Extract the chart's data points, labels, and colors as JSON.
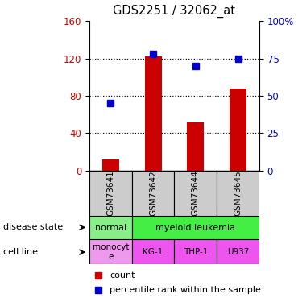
{
  "title": "GDS2251 / 32062_at",
  "samples": [
    "GSM73641",
    "GSM73642",
    "GSM73644",
    "GSM73645"
  ],
  "counts": [
    12,
    122,
    52,
    88
  ],
  "percentiles": [
    45,
    78,
    70,
    75
  ],
  "ylim_left": [
    0,
    160
  ],
  "ylim_right": [
    0,
    100
  ],
  "yticks_left": [
    0,
    40,
    80,
    120,
    160
  ],
  "yticks_right": [
    0,
    25,
    50,
    75,
    100
  ],
  "ytick_labels_right": [
    "0",
    "25",
    "50",
    "75",
    "100%"
  ],
  "bar_color": "#cc0000",
  "dot_color": "#0000cc",
  "cell_lines": [
    "monocyt\ne",
    "KG-1",
    "THP-1",
    "U937"
  ],
  "disease_color_normal": "#88ee88",
  "disease_color_leukemia": "#44ee44",
  "cell_color_mono": "#ee99ee",
  "cell_color_other": "#ee55ee",
  "gray_color": "#cccccc"
}
